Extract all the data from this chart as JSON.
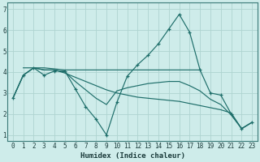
{
  "xlabel": "Humidex (Indice chaleur)",
  "bg_color": "#ceecea",
  "grid_color": "#aed4d0",
  "line_color": "#1e6e6a",
  "xlim": [
    -0.5,
    23.5
  ],
  "ylim": [
    0.7,
    7.3
  ],
  "xticks": [
    0,
    1,
    2,
    3,
    4,
    5,
    6,
    7,
    8,
    9,
    10,
    11,
    12,
    13,
    14,
    15,
    16,
    17,
    18,
    19,
    20,
    21,
    22,
    23
  ],
  "yticks": [
    1,
    2,
    3,
    4,
    5,
    6,
    7
  ],
  "series_marker": {
    "x": [
      0,
      1,
      2,
      3,
      4,
      5,
      6,
      7,
      8,
      9,
      10,
      11,
      12,
      13,
      14,
      15,
      16,
      17,
      18,
      19,
      20,
      21,
      22,
      23
    ],
    "y": [
      2.75,
      3.85,
      4.2,
      3.85,
      4.05,
      4.05,
      3.2,
      2.35,
      1.75,
      1.0,
      2.55,
      3.8,
      4.35,
      4.8,
      5.35,
      6.05,
      6.75,
      5.9,
      4.1,
      3.0,
      2.9,
      2.0,
      1.3,
      1.6
    ]
  },
  "series_flat": {
    "x": [
      1,
      2,
      3,
      4,
      5,
      6,
      7,
      8,
      9,
      10,
      11,
      12,
      13,
      14,
      15,
      16,
      17,
      18
    ],
    "y": [
      4.2,
      4.2,
      4.2,
      4.15,
      4.1,
      4.1,
      4.1,
      4.1,
      4.1,
      4.1,
      4.1,
      4.1,
      4.1,
      4.1,
      4.1,
      4.1,
      4.1,
      4.1
    ]
  },
  "series_decline1": {
    "x": [
      0,
      1,
      2,
      3,
      4,
      5,
      6,
      7,
      8,
      9,
      10,
      11,
      12,
      13,
      14,
      15,
      16,
      17,
      18,
      19,
      20,
      21,
      22,
      23
    ],
    "y": [
      2.75,
      3.85,
      4.2,
      4.1,
      4.1,
      3.95,
      3.75,
      3.55,
      3.35,
      3.15,
      3.0,
      2.9,
      2.8,
      2.75,
      2.7,
      2.65,
      2.6,
      2.5,
      2.4,
      2.3,
      2.2,
      2.05,
      1.3,
      1.6
    ]
  },
  "series_decline2": {
    "x": [
      0,
      1,
      2,
      3,
      4,
      5,
      6,
      7,
      8,
      9,
      10,
      11,
      12,
      13,
      14,
      15,
      16,
      17,
      18,
      19,
      20,
      21,
      22,
      23
    ],
    "y": [
      2.75,
      3.85,
      4.2,
      4.1,
      4.1,
      4.0,
      3.55,
      3.15,
      2.75,
      2.45,
      3.1,
      3.25,
      3.35,
      3.45,
      3.5,
      3.55,
      3.55,
      3.35,
      3.1,
      2.7,
      2.45,
      1.95,
      1.3,
      1.6
    ]
  }
}
